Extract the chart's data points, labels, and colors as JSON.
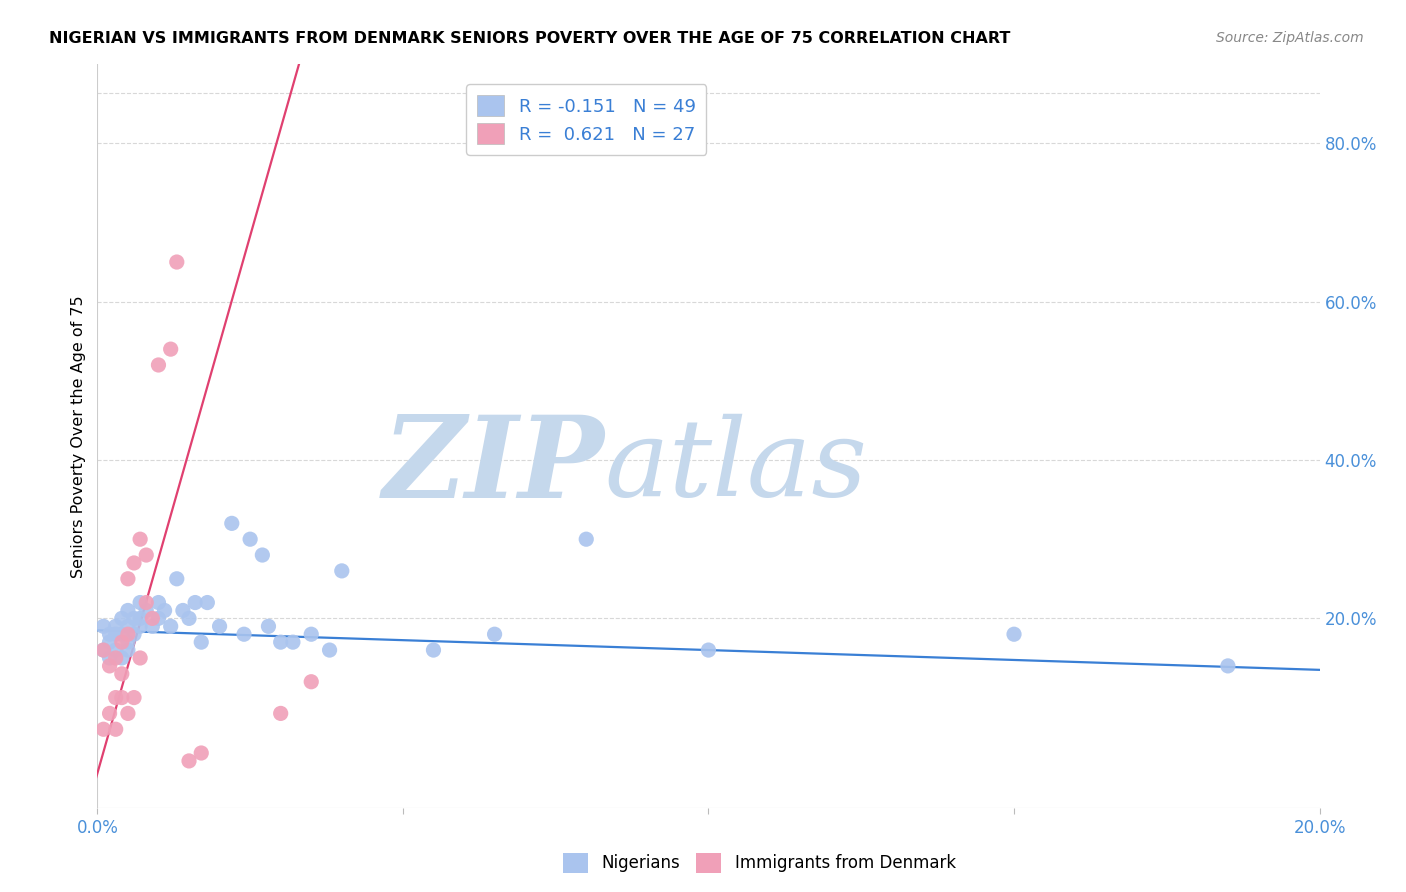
{
  "title": "NIGERIAN VS IMMIGRANTS FROM DENMARK SENIORS POVERTY OVER THE AGE OF 75 CORRELATION CHART",
  "source": "Source: ZipAtlas.com",
  "ylabel": "Seniors Poverty Over the Age of 75",
  "xlim": [
    0.0,
    0.2
  ],
  "ylim": [
    -0.04,
    0.9
  ],
  "right_yticks": [
    0.2,
    0.4,
    0.6,
    0.8
  ],
  "right_yticklabels": [
    "20.0%",
    "40.0%",
    "60.0%",
    "80.0%"
  ],
  "xticks": [
    0.0,
    0.05,
    0.1,
    0.15,
    0.2
  ],
  "xticklabels": [
    "0.0%",
    "",
    "",
    "",
    "20.0%"
  ],
  "legend_blue_label": "R = -0.151   N = 49",
  "legend_pink_label": "R =  0.621   N = 27",
  "legend_nigerians": "Nigerians",
  "legend_denmark": "Immigrants from Denmark",
  "blue_color": "#aac4ee",
  "pink_color": "#f0a0b8",
  "blue_line_color": "#3a7fd5",
  "pink_line_color": "#e04070",
  "watermark_zip": "ZIP",
  "watermark_atlas": "atlas",
  "watermark_color_zip": "#c5d8ec",
  "watermark_color_atlas": "#c5d8ec",
  "grid_color": "#d8d8d8",
  "nigerian_x": [
    0.001,
    0.001,
    0.002,
    0.002,
    0.002,
    0.003,
    0.003,
    0.003,
    0.004,
    0.004,
    0.004,
    0.005,
    0.005,
    0.005,
    0.005,
    0.006,
    0.006,
    0.007,
    0.007,
    0.007,
    0.008,
    0.009,
    0.01,
    0.01,
    0.011,
    0.012,
    0.013,
    0.014,
    0.015,
    0.016,
    0.017,
    0.018,
    0.02,
    0.022,
    0.024,
    0.025,
    0.027,
    0.028,
    0.03,
    0.032,
    0.035,
    0.038,
    0.04,
    0.055,
    0.065,
    0.08,
    0.1,
    0.15,
    0.185
  ],
  "nigerian_y": [
    0.19,
    0.16,
    0.18,
    0.15,
    0.17,
    0.19,
    0.16,
    0.18,
    0.2,
    0.18,
    0.15,
    0.21,
    0.17,
    0.19,
    0.16,
    0.2,
    0.18,
    0.22,
    0.19,
    0.2,
    0.21,
    0.19,
    0.22,
    0.2,
    0.21,
    0.19,
    0.25,
    0.21,
    0.2,
    0.22,
    0.17,
    0.22,
    0.19,
    0.32,
    0.18,
    0.3,
    0.28,
    0.19,
    0.17,
    0.17,
    0.18,
    0.16,
    0.26,
    0.16,
    0.18,
    0.3,
    0.16,
    0.18,
    0.14
  ],
  "denmark_x": [
    0.001,
    0.001,
    0.002,
    0.002,
    0.003,
    0.003,
    0.003,
    0.004,
    0.004,
    0.004,
    0.005,
    0.005,
    0.005,
    0.006,
    0.006,
    0.007,
    0.007,
    0.008,
    0.008,
    0.009,
    0.01,
    0.012,
    0.013,
    0.015,
    0.017,
    0.03,
    0.035
  ],
  "denmark_y": [
    0.16,
    0.06,
    0.14,
    0.08,
    0.15,
    0.1,
    0.06,
    0.17,
    0.13,
    0.1,
    0.25,
    0.18,
    0.08,
    0.27,
    0.1,
    0.3,
    0.15,
    0.28,
    0.22,
    0.2,
    0.52,
    0.54,
    0.65,
    0.02,
    0.03,
    0.08,
    0.12
  ],
  "pink_trend_x0": -0.002,
  "pink_trend_x1": 0.033,
  "pink_trend_y0": -0.05,
  "pink_trend_y1": 0.9,
  "blue_trend_x0": 0.0,
  "blue_trend_x1": 0.2,
  "blue_trend_y0": 0.185,
  "blue_trend_y1": 0.135
}
